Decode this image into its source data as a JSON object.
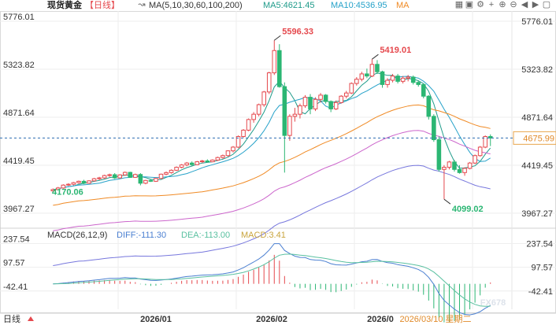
{
  "header": {
    "title": "现货黄金",
    "period": "【日线】",
    "ma_label": "MA(5,10,30,60,100,200)",
    "ma5": "MA5:4621.45",
    "ma10": "MA10:4536.95",
    "ma_next": "MA"
  },
  "colors": {
    "up": "#e5484d",
    "down": "#2bb673",
    "ma5": "#1f9b8a",
    "ma10": "#26a2c9",
    "ma30": "#f08a24",
    "ma60": "#cc66cc",
    "ma100": "#7777dd",
    "last_price_bg": "#ffffff",
    "diff": "#4a7fd1",
    "dea": "#59c0a0"
  },
  "price_axis": {
    "ticks": [
      "5776.01",
      "5323.82",
      "4871.64",
      "4419.45",
      "3967.27"
    ],
    "last_price": "4675.99"
  },
  "annotations": {
    "high": "5596.33",
    "high2": "5419.01",
    "low": "4099.02",
    "low_left": "4170.06"
  },
  "macd": {
    "label": "MACD(26,12,9)",
    "diff": "DIFF:-111.30",
    "dea": "DEA:-113.00",
    "macd": "MACD:3.41",
    "ticks": [
      "237.54",
      "97.57",
      "-42.41"
    ]
  },
  "xaxis": {
    "period_label": "日线",
    "labels": [
      "2026/01",
      "2026/02",
      "2026/0"
    ],
    "current_date": "2026/03/10 星期二"
  },
  "watermark": "FX678",
  "chart_data": {
    "type": "candlestick",
    "symbol": "现货黄金",
    "interval": "日线",
    "ylim": [
      3900,
      5776.01
    ],
    "candles": [
      [
        4178,
        4200,
        4160,
        4190
      ],
      [
        4190,
        4215,
        4185,
        4205
      ],
      [
        4205,
        4240,
        4198,
        4232
      ],
      [
        4232,
        4250,
        4225,
        4240
      ],
      [
        4240,
        4262,
        4230,
        4255
      ],
      [
        4255,
        4275,
        4245,
        4268
      ],
      [
        4268,
        4282,
        4240,
        4250
      ],
      [
        4250,
        4278,
        4245,
        4272
      ],
      [
        4272,
        4300,
        4265,
        4292
      ],
      [
        4292,
        4310,
        4280,
        4300
      ],
      [
        4300,
        4330,
        4292,
        4322
      ],
      [
        4322,
        4340,
        4310,
        4330
      ],
      [
        4330,
        4345,
        4290,
        4300
      ],
      [
        4300,
        4335,
        4295,
        4328
      ],
      [
        4328,
        4360,
        4320,
        4352
      ],
      [
        4352,
        4358,
        4300,
        4305
      ],
      [
        4305,
        4340,
        4300,
        4332
      ],
      [
        4332,
        4345,
        4230,
        4250
      ],
      [
        4250,
        4282,
        4240,
        4276
      ],
      [
        4276,
        4290,
        4262,
        4268
      ],
      [
        4268,
        4300,
        4262,
        4295
      ],
      [
        4295,
        4340,
        4290,
        4335
      ],
      [
        4335,
        4360,
        4325,
        4350
      ],
      [
        4350,
        4380,
        4340,
        4372
      ],
      [
        4372,
        4408,
        4365,
        4400
      ],
      [
        4400,
        4430,
        4390,
        4422
      ],
      [
        4422,
        4450,
        4410,
        4440
      ],
      [
        4440,
        4455,
        4415,
        4425
      ],
      [
        4425,
        4460,
        4420,
        4452
      ],
      [
        4452,
        4470,
        4440,
        4460
      ],
      [
        4460,
        4475,
        4445,
        4452
      ],
      [
        4452,
        4475,
        4448,
        4468
      ],
      [
        4468,
        4500,
        4460,
        4492
      ],
      [
        4492,
        4520,
        4480,
        4510
      ],
      [
        4510,
        4560,
        4500,
        4555
      ],
      [
        4555,
        4600,
        4540,
        4590
      ],
      [
        4590,
        4700,
        4580,
        4690
      ],
      [
        4690,
        4760,
        4680,
        4750
      ],
      [
        4750,
        4860,
        4740,
        4850
      ],
      [
        4850,
        4920,
        4820,
        4900
      ],
      [
        4900,
        5000,
        4880,
        4990
      ],
      [
        4990,
        5120,
        4970,
        5110
      ],
      [
        5110,
        5300,
        5090,
        5290
      ],
      [
        5290,
        5596.33,
        5270,
        5500
      ],
      [
        5500,
        5560,
        5150,
        5160
      ],
      [
        5160,
        5200,
        4350,
        4700
      ],
      [
        4700,
        4900,
        4650,
        4880
      ],
      [
        4880,
        4960,
        4830,
        4900
      ],
      [
        4900,
        5000,
        4860,
        4980
      ],
      [
        4980,
        5080,
        4960,
        5060
      ],
      [
        5060,
        5090,
        4900,
        4950
      ],
      [
        4950,
        5060,
        4930,
        5040
      ],
      [
        5040,
        5100,
        5010,
        5080
      ],
      [
        5080,
        5090,
        5000,
        5020
      ],
      [
        5020,
        5030,
        4920,
        4950
      ],
      [
        4950,
        5030,
        4940,
        5010
      ],
      [
        5010,
        5080,
        5000,
        5070
      ],
      [
        5070,
        5120,
        5050,
        5100
      ],
      [
        5100,
        5200,
        5090,
        5190
      ],
      [
        5190,
        5250,
        5170,
        5230
      ],
      [
        5230,
        5300,
        5210,
        5280
      ],
      [
        5280,
        5330,
        5240,
        5260
      ],
      [
        5260,
        5419.01,
        5250,
        5370
      ],
      [
        5370,
        5410,
        5280,
        5300
      ],
      [
        5300,
        5310,
        5150,
        5180
      ],
      [
        5180,
        5240,
        5150,
        5220
      ],
      [
        5220,
        5280,
        5200,
        5260
      ],
      [
        5260,
        5280,
        5190,
        5210
      ],
      [
        5210,
        5260,
        5190,
        5240
      ],
      [
        5240,
        5270,
        5210,
        5250
      ],
      [
        5250,
        5265,
        5180,
        5200
      ],
      [
        5200,
        5220,
        5160,
        5180
      ],
      [
        5180,
        5190,
        5050,
        5070
      ],
      [
        5070,
        5080,
        4850,
        4880
      ],
      [
        4880,
        4900,
        4640,
        4660
      ],
      [
        4660,
        4690,
        4360,
        4380
      ],
      [
        4380,
        4420,
        4099.02,
        4400
      ],
      [
        4400,
        4460,
        4380,
        4450
      ],
      [
        4450,
        4470,
        4360,
        4380
      ],
      [
        4380,
        4420,
        4340,
        4350
      ],
      [
        4350,
        4400,
        4320,
        4390
      ],
      [
        4390,
        4450,
        4380,
        4440
      ],
      [
        4440,
        4520,
        4430,
        4510
      ],
      [
        4510,
        4600,
        4500,
        4590
      ],
      [
        4590,
        4700,
        4580,
        4690
      ],
      [
        4690,
        4710,
        4600,
        4675.99
      ]
    ],
    "macd_hist_count": 86,
    "price_ticks": [
      5776.01,
      5323.82,
      4871.64,
      4419.45,
      3967.27
    ],
    "macd_ticks": [
      237.54,
      97.57,
      -42.41
    ],
    "macd_range": [
      -150,
      300
    ],
    "last_price": 4675.99,
    "markers": {
      "high": 5596.33,
      "high2": 5419.01,
      "low": 4099.02,
      "low_left": 4170.06
    }
  }
}
